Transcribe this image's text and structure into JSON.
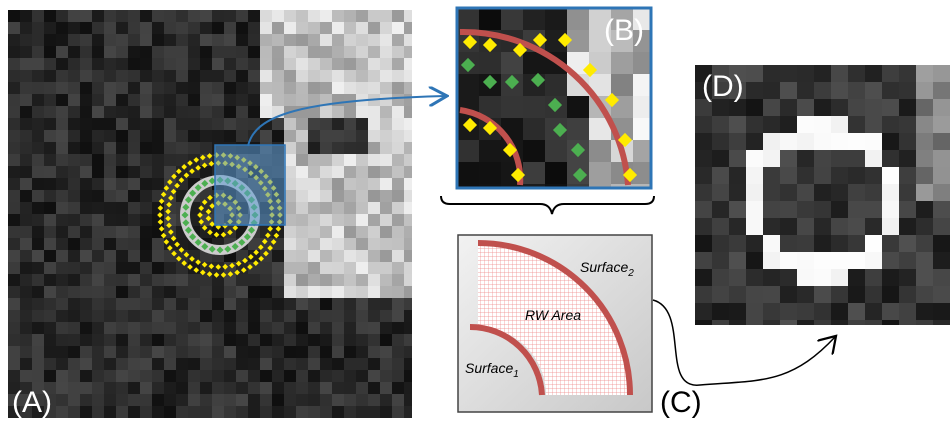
{
  "panels": {
    "a": {
      "label": "(A)"
    },
    "b": {
      "label": "(B)"
    },
    "c": {
      "label": "(C)"
    },
    "d": {
      "label": "(D)"
    }
  },
  "diagram": {
    "surface_2": {
      "name": "Surface",
      "subscript": "2"
    },
    "area_label": "RW Area",
    "surface_1": {
      "name": "Surface",
      "subscript": "1"
    }
  }
}
